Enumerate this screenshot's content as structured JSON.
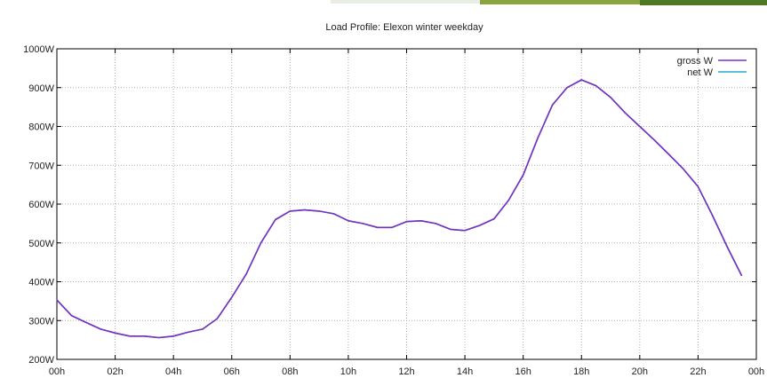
{
  "chart_data": {
    "type": "line",
    "title": "Load Profile: Elexon winter weekday",
    "xlabel": "",
    "ylabel": "",
    "x_ticks": [
      "00h",
      "02h",
      "04h",
      "06h",
      "08h",
      "10h",
      "12h",
      "14h",
      "16h",
      "18h",
      "20h",
      "22h",
      "00h"
    ],
    "y_ticks": [
      "200W",
      "300W",
      "400W",
      "500W",
      "600W",
      "700W",
      "800W",
      "900W",
      "1000W"
    ],
    "xlim": [
      0,
      24
    ],
    "ylim": [
      200,
      1000
    ],
    "grid": true,
    "legend_position": "top-right",
    "x": [
      0,
      0.5,
      1,
      1.5,
      2,
      2.5,
      3,
      3.5,
      4,
      4.5,
      5,
      5.5,
      6,
      6.5,
      7,
      7.5,
      8,
      8.5,
      9,
      9.5,
      10,
      10.5,
      11,
      11.5,
      12,
      12.5,
      13,
      13.5,
      14,
      14.5,
      15,
      15.5,
      16,
      16.5,
      17,
      17.5,
      18,
      18.5,
      19,
      19.5,
      20,
      20.5,
      21,
      21.5,
      22,
      22.5,
      23,
      23.5
    ],
    "series": [
      {
        "name": "gross W",
        "color": "#7b2fbf",
        "values": [
          353,
          313,
          295,
          278,
          268,
          260,
          260,
          256,
          260,
          270,
          278,
          305,
          360,
          420,
          500,
          560,
          582,
          585,
          582,
          575,
          557,
          550,
          540,
          540,
          555,
          557,
          550,
          535,
          532,
          545,
          562,
          610,
          675,
          770,
          855,
          900,
          920,
          905,
          875,
          835,
          800,
          765,
          728,
          690,
          645,
          570,
          490,
          415
        ]
      },
      {
        "name": "net W",
        "color": "#2aa8c8",
        "values": [
          353,
          313,
          295,
          278,
          268,
          260,
          260,
          256,
          260,
          270,
          278,
          305,
          360,
          420,
          500,
          560,
          582,
          585,
          582,
          575,
          557,
          550,
          540,
          540,
          555,
          557,
          550,
          535,
          532,
          545,
          562,
          610,
          675,
          770,
          855,
          900,
          920,
          905,
          875,
          835,
          800,
          765,
          728,
          690,
          645,
          570,
          490,
          415
        ]
      }
    ]
  }
}
